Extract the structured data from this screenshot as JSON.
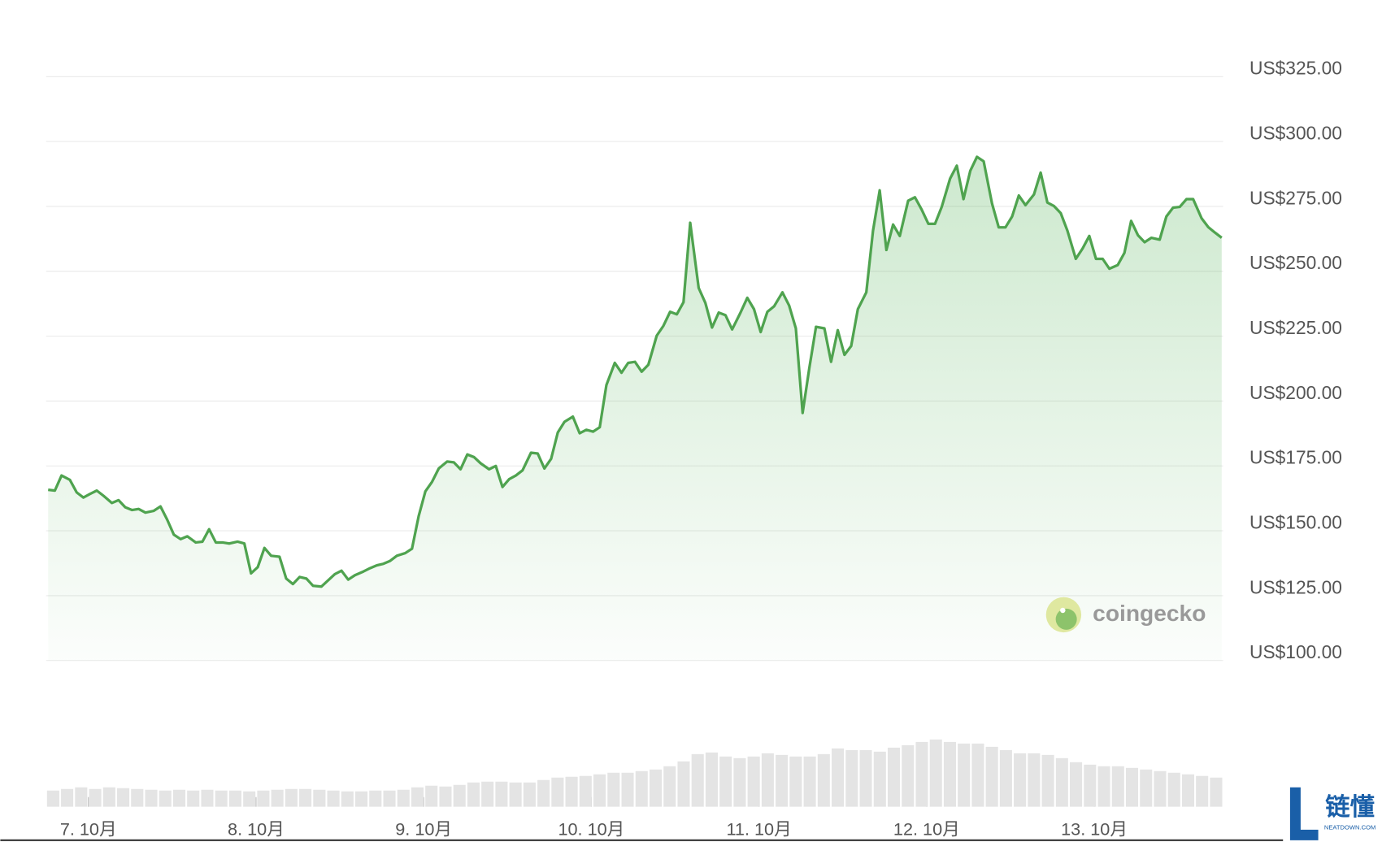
{
  "chart_data": {
    "type": "line",
    "grid": true,
    "ylim": [
      100,
      325
    ],
    "yticks": [
      {
        "value": 100,
        "label": "US$100.00"
      },
      {
        "value": 125,
        "label": "US$125.00"
      },
      {
        "value": 150,
        "label": "US$150.00"
      },
      {
        "value": 175,
        "label": "US$175.00"
      },
      {
        "value": 200,
        "label": "US$200.00"
      },
      {
        "value": 225,
        "label": "US$225.00"
      },
      {
        "value": 250,
        "label": "US$250.00"
      },
      {
        "value": 275,
        "label": "US$275.00"
      },
      {
        "value": 300,
        "label": "US$300.00"
      },
      {
        "value": 325,
        "label": "US$325.00"
      }
    ],
    "xlim": [
      6.76,
      13.76
    ],
    "xticks": [
      {
        "value": 7,
        "label": "7. 10月"
      },
      {
        "value": 8,
        "label": "8. 10月"
      },
      {
        "value": 9,
        "label": "9. 10月"
      },
      {
        "value": 10,
        "label": "10. 10月"
      },
      {
        "value": 11,
        "label": "11. 10月"
      },
      {
        "value": 12,
        "label": "12. 10月"
      },
      {
        "value": 13,
        "label": "13. 10月"
      }
    ],
    "x": [
      6.76,
      6.8,
      6.84,
      6.89,
      6.93,
      6.97,
      7.01,
      7.05,
      7.09,
      7.14,
      7.18,
      7.22,
      7.26,
      7.3,
      7.34,
      7.39,
      7.43,
      7.47,
      7.51,
      7.55,
      7.59,
      7.64,
      7.68,
      7.72,
      7.76,
      7.8,
      7.84,
      7.89,
      7.93,
      7.97,
      8.01,
      8.05,
      8.09,
      8.14,
      8.18,
      8.22,
      8.26,
      8.3,
      8.34,
      8.39,
      8.43,
      8.47,
      8.51,
      8.55,
      8.59,
      8.64,
      8.68,
      8.72,
      8.76,
      8.8,
      8.84,
      8.89,
      8.93,
      8.97,
      9.01,
      9.05,
      9.09,
      9.14,
      9.18,
      9.22,
      9.26,
      9.3,
      9.34,
      9.39,
      9.43,
      9.47,
      9.51,
      9.55,
      9.59,
      9.64,
      9.68,
      9.72,
      9.76,
      9.8,
      9.84,
      9.89,
      9.93,
      9.97,
      10.01,
      10.05,
      10.09,
      10.14,
      10.18,
      10.22,
      10.26,
      10.3,
      10.34,
      10.39,
      10.43,
      10.47,
      10.51,
      10.55,
      10.59,
      10.64,
      10.68,
      10.72,
      10.76,
      10.8,
      10.84,
      10.89,
      10.93,
      10.97,
      11.01,
      11.05,
      11.09,
      11.14,
      11.18,
      11.22,
      11.26,
      11.3,
      11.34,
      11.39,
      11.43,
      11.47,
      11.51,
      11.55,
      11.59,
      11.64,
      11.68,
      11.72,
      11.76,
      11.8,
      11.84,
      11.89,
      11.93,
      11.97,
      12.01,
      12.05,
      12.09,
      12.14,
      12.18,
      12.22,
      12.26,
      12.3,
      12.34,
      12.39,
      12.43,
      12.47,
      12.51,
      12.55,
      12.59,
      12.64,
      12.68,
      12.72,
      12.76,
      12.8,
      12.84,
      12.89,
      12.93,
      12.97,
      13.01,
      13.05,
      13.09,
      13.14,
      13.18,
      13.22,
      13.26,
      13.3,
      13.34,
      13.39,
      13.43,
      13.47,
      13.51,
      13.55,
      13.59,
      13.64,
      13.68,
      13.72,
      13.76
    ],
    "series": [
      {
        "color": "#4fa34f",
        "values": [
          165.8,
          165.5,
          171.3,
          169.6,
          164.8,
          162.8,
          164.2,
          165.5,
          163.5,
          160.7,
          161.8,
          159.1,
          158.0,
          158.4,
          157.0,
          157.7,
          159.4,
          154.3,
          148.5,
          146.8,
          147.9,
          145.5,
          145.8,
          150.6,
          145.5,
          145.5,
          145.1,
          145.8,
          145.1,
          133.6,
          136.0,
          143.4,
          140.4,
          140.0,
          131.6,
          129.5,
          132.2,
          131.6,
          128.8,
          128.5,
          130.9,
          133.3,
          134.6,
          131.2,
          132.9,
          134.3,
          135.6,
          136.7,
          137.3,
          138.4,
          140.4,
          141.4,
          143.1,
          155.7,
          165.2,
          168.9,
          174.0,
          176.7,
          176.4,
          173.7,
          179.4,
          178.4,
          176.0,
          173.7,
          175.0,
          166.9,
          169.9,
          171.3,
          173.3,
          180.1,
          179.8,
          174.0,
          177.7,
          187.9,
          192.0,
          194.0,
          187.6,
          188.9,
          188.2,
          189.9,
          206.2,
          214.7,
          210.9,
          214.7,
          215.1,
          211.3,
          214.0,
          225.2,
          229.0,
          234.4,
          233.4,
          238.1,
          268.7,
          243.6,
          237.8,
          228.3,
          234.1,
          233.1,
          227.6,
          234.1,
          239.8,
          235.4,
          226.6,
          234.4,
          236.5,
          241.9,
          236.8,
          228.0,
          195.4,
          212.7,
          228.6,
          228.0,
          215.1,
          227.3,
          217.8,
          221.2,
          235.4,
          241.9,
          265.6,
          281.2,
          258.2,
          268.0,
          263.6,
          277.2,
          278.5,
          273.8,
          268.3,
          268.3,
          274.8,
          285.7,
          290.7,
          277.8,
          288.7,
          294.1,
          292.4,
          276.1,
          266.9,
          266.9,
          271.1,
          279.2,
          275.5,
          279.6,
          288.0,
          276.5,
          275.1,
          272.4,
          265.6,
          254.8,
          258.8,
          263.6,
          254.8,
          254.8,
          251.0,
          252.4,
          257.1,
          269.4,
          263.9,
          261.2,
          262.9,
          262.2,
          271.1,
          274.5,
          274.8,
          277.8,
          277.8,
          270.4,
          267.0,
          264.9,
          262.9
        ]
      }
    ],
    "volume": {
      "ylim": [
        0,
        100
      ],
      "color": "#e4e4e4",
      "values": [
        20,
        22,
        24,
        22,
        24,
        23,
        22,
        21,
        20,
        21,
        20,
        21,
        20,
        20,
        19,
        20,
        21,
        22,
        22,
        21,
        20,
        19,
        19,
        20,
        20,
        21,
        24,
        26,
        25,
        27,
        30,
        31,
        31,
        30,
        30,
        33,
        36,
        37,
        38,
        40,
        42,
        42,
        44,
        46,
        50,
        56,
        65,
        67,
        62,
        60,
        62,
        66,
        64,
        62,
        62,
        65,
        72,
        70,
        70,
        68,
        73,
        76,
        80,
        83,
        80,
        78,
        78,
        74,
        70,
        66,
        66,
        64,
        60,
        55,
        52,
        50,
        50,
        48,
        46,
        44,
        42,
        40,
        38,
        36
      ]
    },
    "watermark": "coingecko"
  },
  "site_logo": {
    "title": "链懂",
    "subtitle": "NEATDOWN.COM"
  }
}
